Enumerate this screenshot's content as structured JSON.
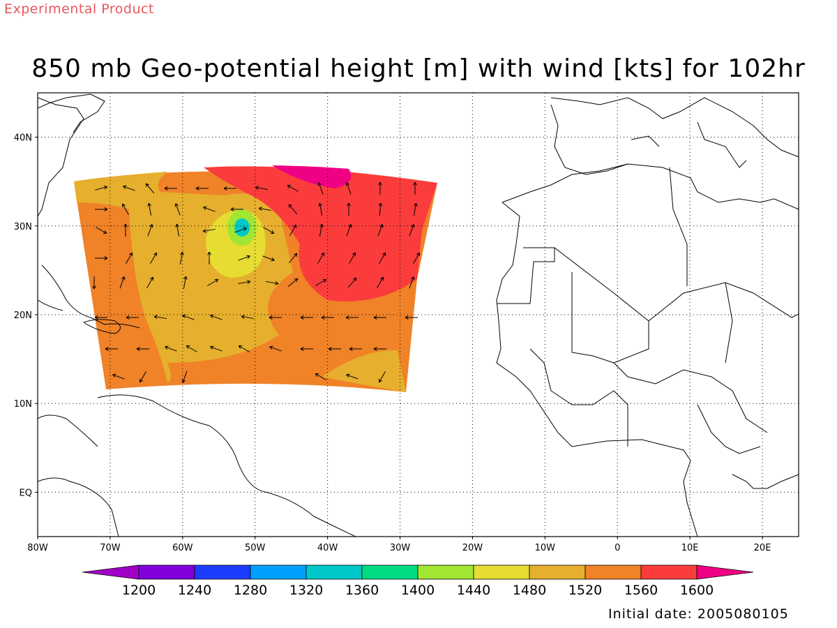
{
  "experimental_label": "Experimental Product",
  "title": "850 mb Geo-potential height [m] with wind [kts] for 102hr",
  "initial_date_label": "Initial date: 2005080105",
  "map": {
    "lon_range": [
      -80,
      25
    ],
    "lat_range": [
      -5,
      45
    ],
    "x_ticks": [
      "80W",
      "70W",
      "60W",
      "50W",
      "40W",
      "30W",
      "20W",
      "10W",
      "0",
      "10E",
      "20E"
    ],
    "y_ticks": [
      "40N",
      "30N",
      "20N",
      "10N",
      "EQ"
    ],
    "grid": "dotted"
  },
  "colorbar": {
    "labels": [
      "1200",
      "1240",
      "1280",
      "1320",
      "1360",
      "1400",
      "1440",
      "1480",
      "1520",
      "1560",
      "1600"
    ],
    "colors": [
      "#a000c8",
      "#8200dc",
      "#1e3cff",
      "#00a0ff",
      "#00c8c8",
      "#00dc82",
      "#a0e632",
      "#e6dc32",
      "#e6af2d",
      "#f08228",
      "#fa3c3c",
      "#f00082"
    ]
  }
}
